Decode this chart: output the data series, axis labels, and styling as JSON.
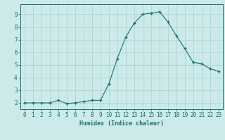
{
  "x": [
    0,
    1,
    2,
    3,
    4,
    5,
    6,
    7,
    8,
    9,
    10,
    11,
    12,
    13,
    14,
    15,
    16,
    17,
    18,
    19,
    20,
    21,
    22,
    23
  ],
  "y": [
    2.0,
    2.0,
    2.0,
    2.0,
    2.2,
    1.95,
    2.0,
    2.1,
    2.2,
    2.2,
    3.5,
    5.5,
    7.2,
    8.3,
    9.0,
    9.1,
    9.2,
    8.4,
    7.3,
    6.3,
    5.2,
    5.1,
    4.7,
    4.5
  ],
  "xlabel": "Humidex (Indice chaleur)",
  "ylim": [
    1.5,
    9.8
  ],
  "xlim": [
    -0.5,
    23.5
  ],
  "yticks": [
    2,
    3,
    4,
    5,
    6,
    7,
    8,
    9
  ],
  "xticks": [
    0,
    1,
    2,
    3,
    4,
    5,
    6,
    7,
    8,
    9,
    10,
    11,
    12,
    13,
    14,
    15,
    16,
    17,
    18,
    19,
    20,
    21,
    22,
    23
  ],
  "line_color": "#1a7070",
  "marker_color": "#1a7070",
  "bg_color": "#cceaea",
  "grid_color": "#aad0d0",
  "axis_color": "#1a7070",
  "tick_color": "#1a7070",
  "label_color": "#1a7070",
  "xlabel_fontsize": 6.0,
  "tick_fontsize": 5.5
}
